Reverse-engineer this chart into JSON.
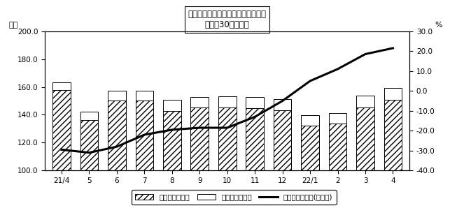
{
  "title": "総労働時間、前年比－調査産業計－\n「規模30人以上」",
  "ylabel_left": "時間",
  "ylabel_right": "%",
  "categories": [
    "21/4",
    "5",
    "6",
    "7",
    "8",
    "9",
    "10",
    "11",
    "12",
    "22/1",
    "2",
    "3",
    "4"
  ],
  "naikaku": [
    158.0,
    136.0,
    150.5,
    150.5,
    143.0,
    145.5,
    145.5,
    145.0,
    143.5,
    132.0,
    133.5,
    145.5,
    151.0
  ],
  "gairo": [
    5.5,
    6.5,
    7.0,
    7.0,
    8.0,
    7.5,
    8.0,
    8.0,
    8.0,
    7.5,
    8.0,
    8.5,
    8.5
  ],
  "yoy": [
    -29.5,
    -31.0,
    -28.0,
    -22.0,
    -19.5,
    -18.5,
    -18.5,
    -13.0,
    -5.0,
    5.0,
    11.0,
    18.5,
    21.5
  ],
  "ylim_left": [
    100.0,
    200.0
  ],
  "ylim_right": [
    -40.0,
    30.0
  ],
  "yticks_left": [
    100.0,
    120.0,
    140.0,
    160.0,
    180.0,
    200.0
  ],
  "yticks_right": [
    -40.0,
    -30.0,
    -20.0,
    -10.0,
    0.0,
    10.0,
    20.0,
    30.0
  ],
  "legend_labels": [
    "所定内労働時間",
    "所定外労働時間",
    "所定外労働時間(前年比)"
  ],
  "bar_edge_color": "#000000",
  "line_color": "#000000",
  "bg_color": "#ffffff",
  "title_fontsize": 8.5,
  "axis_label_fontsize": 8,
  "tick_fontsize": 7.5,
  "legend_fontsize": 7.5,
  "bar_width": 0.65
}
